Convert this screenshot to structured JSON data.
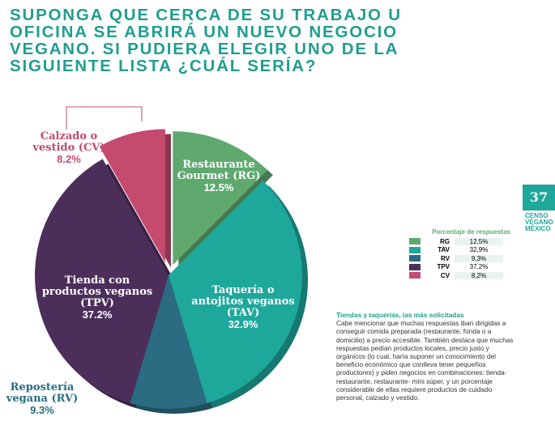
{
  "chart_data": {
    "type": "pie",
    "title": "SUPONGA QUE CERCA DE SU TRABAJO U OFICINA SE ABRIRÁ UN NUEVO NEGOCIO VEGANO. SI PUDIERA ELEGIR UNO DE LA SIGUIENTE LISTA ¿CUÁL SERÍA?",
    "categories": [
      "Restaurante Gourmet (RG)",
      "Taquería o antojitos veganos (TAV)",
      "Repostería vegana (RV)",
      "Tienda con productos veganos (TPV)",
      "Calzado o vestido (CV)"
    ],
    "values": [
      12.5,
      32.9,
      9.3,
      37.2,
      8.2
    ],
    "value_labels": [
      "12.5%",
      "32.9%",
      "9.3%",
      "37.2%",
      "8.2%"
    ],
    "colors": [
      "#5fa96f",
      "#1ea79b",
      "#2b6c82",
      "#4c2e5b",
      "#c44a70"
    ]
  },
  "legend_table": {
    "title": "Porcentaje de respuestas",
    "rows": [
      {
        "code": "RG",
        "value": "12,5%"
      },
      {
        "code": "TAV",
        "value": "32,9%"
      },
      {
        "code": "RV",
        "value": "9,3%"
      },
      {
        "code": "TPV",
        "value": "37,2%"
      },
      {
        "code": "CV",
        "value": "8,2%"
      }
    ]
  },
  "article": {
    "heading": "Tiendas y taquerías, las más solicitadas",
    "body": "Cabe mencionar que muchas respuestas iban dirigidas a conseguir comida preparada (restaurante, fonda o a domicilio) a precio accesible. También destaca que muchas respuestas pedían productos locales, precio justo y orgánicos (lo cual, haría suponer un conocimiento del beneficio económico que conlleva tener pequeños productores) y piden negocios en combinaciones: tienda- restaurante, restaurante- mini súper, y un porcentaje considerable de ellas requiere productos de cuidado personal, calzado y vestido."
  },
  "page_number": "37",
  "brand": [
    "CENSO",
    "VEGANO",
    "MÉXICO"
  ]
}
